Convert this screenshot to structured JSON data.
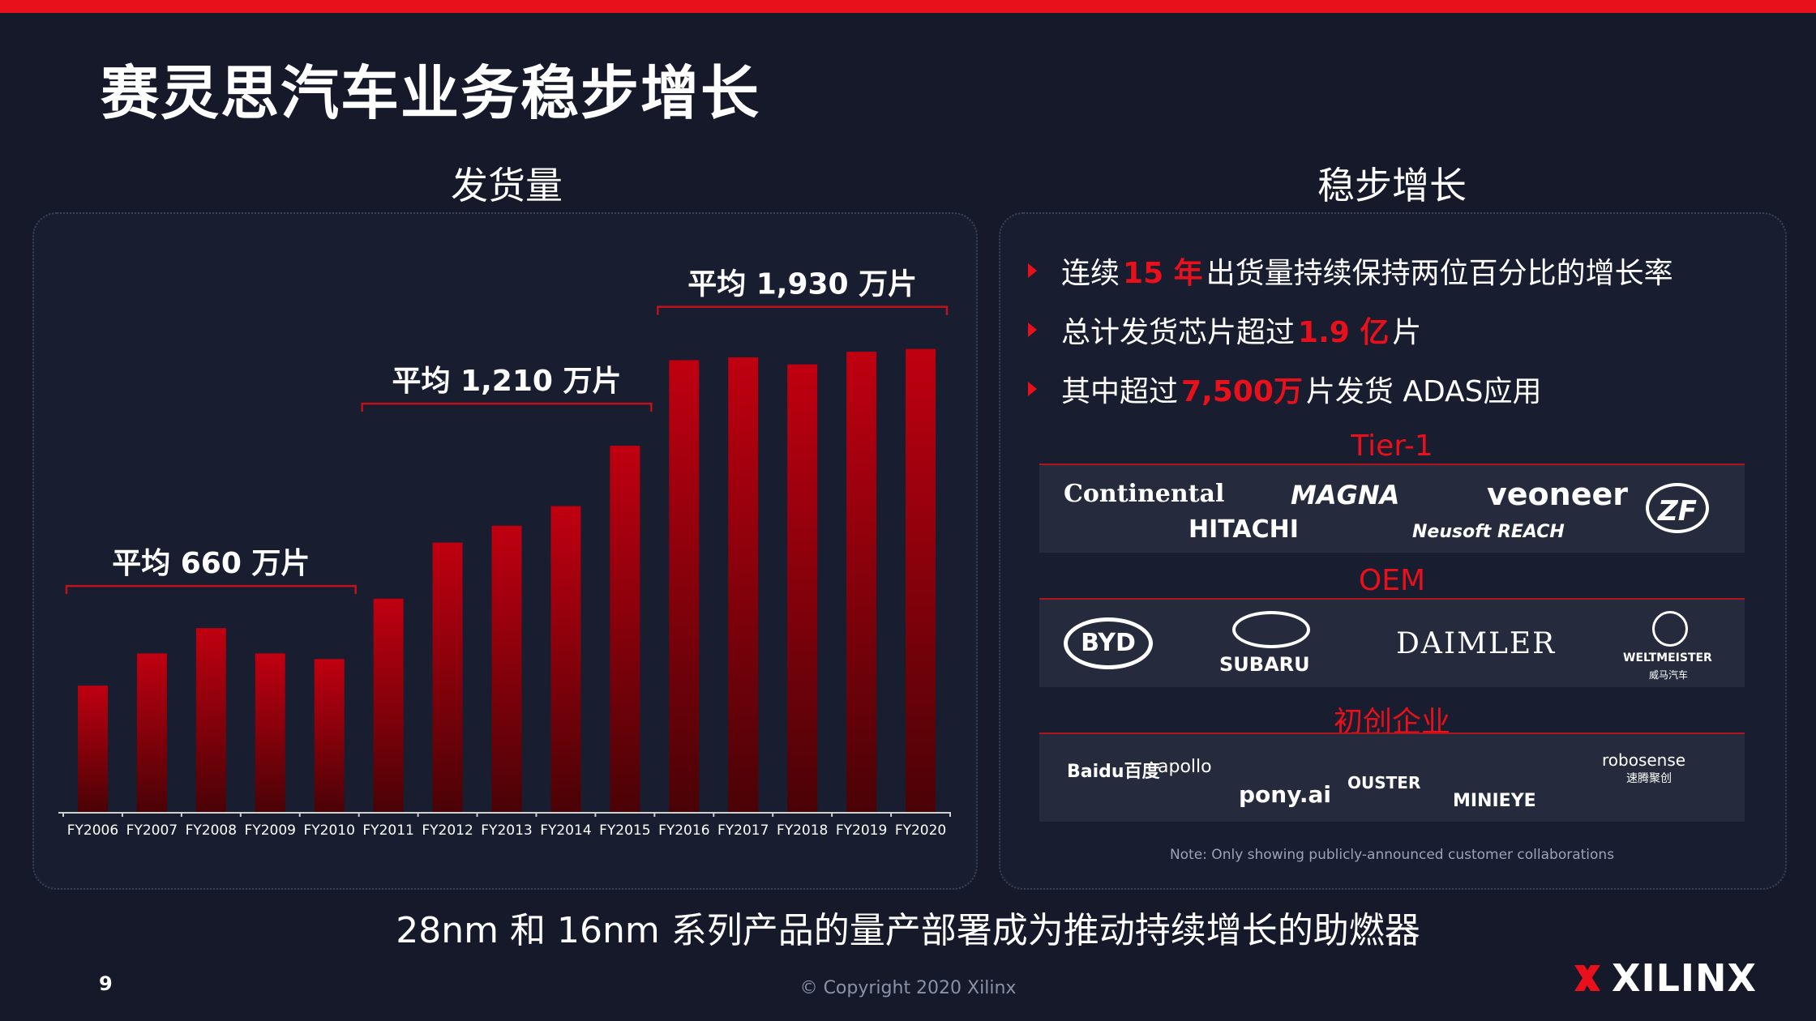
{
  "slide": {
    "title": "赛灵思汽车业务稳步增长",
    "page_number": "9",
    "copyright": "© Copyright 2020 Xilinx",
    "brand": "XILINX",
    "subtitle": "28nm 和 16nm 系列产品的量产部署成为推动持续增长的助燃器"
  },
  "left_section": {
    "title": "发货量"
  },
  "right_section": {
    "title": "稳步增长",
    "bullets": [
      {
        "pre": "连续",
        "highlight": "15 年",
        "post": "出货量持续保持两位百分比的增长率"
      },
      {
        "pre": "总计发货芯片超过",
        "highlight": "1.9 亿",
        "post": "片"
      },
      {
        "pre": "其中超过",
        "highlight": "7,500万",
        "post": " 片发货 ADAS应用"
      }
    ],
    "groups": [
      {
        "label": "Tier-1",
        "logos": [
          "Continental",
          "MAGNA",
          "veoneer",
          "HITACHI",
          "Neusoft REACH",
          "ZF"
        ]
      },
      {
        "label": "OEM",
        "logos": [
          "BYD",
          "SUBARU",
          "DAIMLER",
          "WELTMEISTER",
          "威马汽车"
        ]
      },
      {
        "label": "初创企业",
        "logos": [
          "Baidu百度",
          "apollo",
          "OUSTER",
          "robosense",
          "速腾聚创",
          "pony.ai",
          "MINIEYE"
        ]
      }
    ],
    "note": "Note: Only showing publicly-announced customer collaborations"
  },
  "colors": {
    "accent": "#e8101a",
    "background": "#15192a",
    "bar_top": "#b0000a",
    "bar_bottom": "#4a0206"
  },
  "chart_data": {
    "type": "bar",
    "title": "发货量",
    "categories": [
      "FY2006",
      "FY2007",
      "FY2008",
      "FY2009",
      "FY2010",
      "FY2011",
      "FY2012",
      "FY2013",
      "FY2014",
      "FY2015",
      "FY2016",
      "FY2017",
      "FY2018",
      "FY2019",
      "FY2020"
    ],
    "values": [
      450,
      565,
      655,
      565,
      545,
      760,
      960,
      1020,
      1090,
      1305,
      1610,
      1620,
      1595,
      1640,
      1650
    ],
    "ylim": [
      0,
      1750
    ],
    "grid": false,
    "annotations": [
      {
        "label": "平均 660 万片",
        "from": 0,
        "to": 4
      },
      {
        "label": "平均 1,210 万片",
        "from": 5,
        "to": 9
      },
      {
        "label": "平均 1,930 万片",
        "from": 10,
        "to": 14
      }
    ]
  }
}
